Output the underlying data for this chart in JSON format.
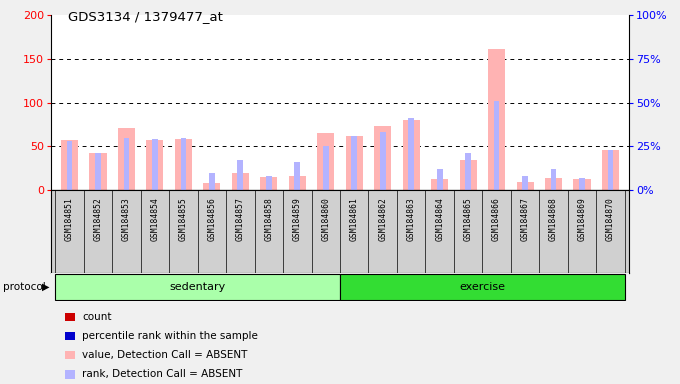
{
  "title": "GDS3134 / 1379477_at",
  "samples": [
    "GSM184851",
    "GSM184852",
    "GSM184853",
    "GSM184854",
    "GSM184855",
    "GSM184856",
    "GSM184857",
    "GSM184858",
    "GSM184859",
    "GSM184860",
    "GSM184861",
    "GSM184862",
    "GSM184863",
    "GSM184864",
    "GSM184865",
    "GSM184866",
    "GSM184867",
    "GSM184868",
    "GSM184869",
    "GSM184870"
  ],
  "value_absent": [
    57,
    42,
    71,
    57,
    58,
    8,
    20,
    15,
    16,
    65,
    62,
    73,
    80,
    13,
    35,
    161,
    9,
    14,
    13,
    46
  ],
  "rank_absent_pct": [
    28,
    21,
    30,
    29,
    30,
    10,
    17,
    8,
    16,
    25,
    31,
    33,
    41,
    12,
    21,
    51,
    8,
    12,
    7,
    23
  ],
  "ylim_left": [
    0,
    200
  ],
  "ylim_right": [
    0,
    100
  ],
  "yticks_left": [
    0,
    50,
    100,
    150,
    200
  ],
  "ytick_labels_right": [
    "0%",
    "25%",
    "50%",
    "75%",
    "100%"
  ],
  "absent_value_color": "#ffb3b3",
  "absent_rank_color": "#b3b3ff",
  "sedentary_color": "#aaffaa",
  "exercise_color": "#33dd33",
  "label_bg_color": "#d0d0d0",
  "bg_color": "#f0f0f0",
  "plot_bg": "#ffffff",
  "sedentary_count": 10,
  "exercise_count": 10,
  "legend_colors": [
    "#cc0000",
    "#0000cc",
    "#ffb3b3",
    "#b3b3ff"
  ],
  "legend_labels": [
    "count",
    "percentile rank within the sample",
    "value, Detection Call = ABSENT",
    "rank, Detection Call = ABSENT"
  ]
}
